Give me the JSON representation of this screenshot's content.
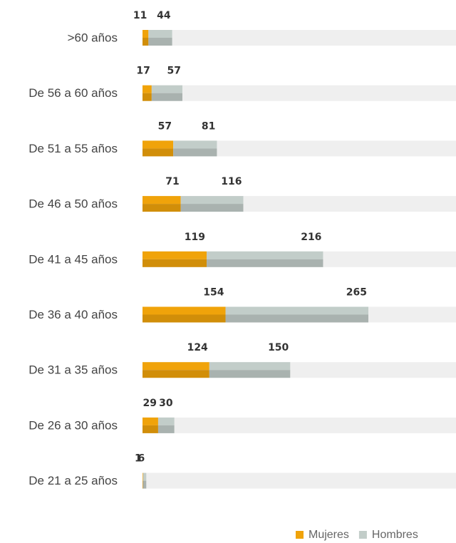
{
  "chart_data": {
    "type": "stacked-bar-horizontal",
    "categories": [
      ">60 años",
      "De 56 a 60 años",
      "De 51 a 55 años",
      "De 46 a 50 años",
      "De 41 a 45 años",
      "De 36 a 40 años",
      "De 31 a 35 años",
      "De 26 a 30 años",
      "De 21 a 25 años"
    ],
    "series": [
      {
        "name": "Mujeres",
        "color": "#f0a30a",
        "values": [
          11,
          17,
          57,
          71,
          119,
          154,
          124,
          29,
          1
        ]
      },
      {
        "name": "Hombres",
        "color": "#c2cdc9",
        "values": [
          44,
          57,
          81,
          116,
          216,
          265,
          150,
          30,
          6
        ]
      }
    ]
  }
}
